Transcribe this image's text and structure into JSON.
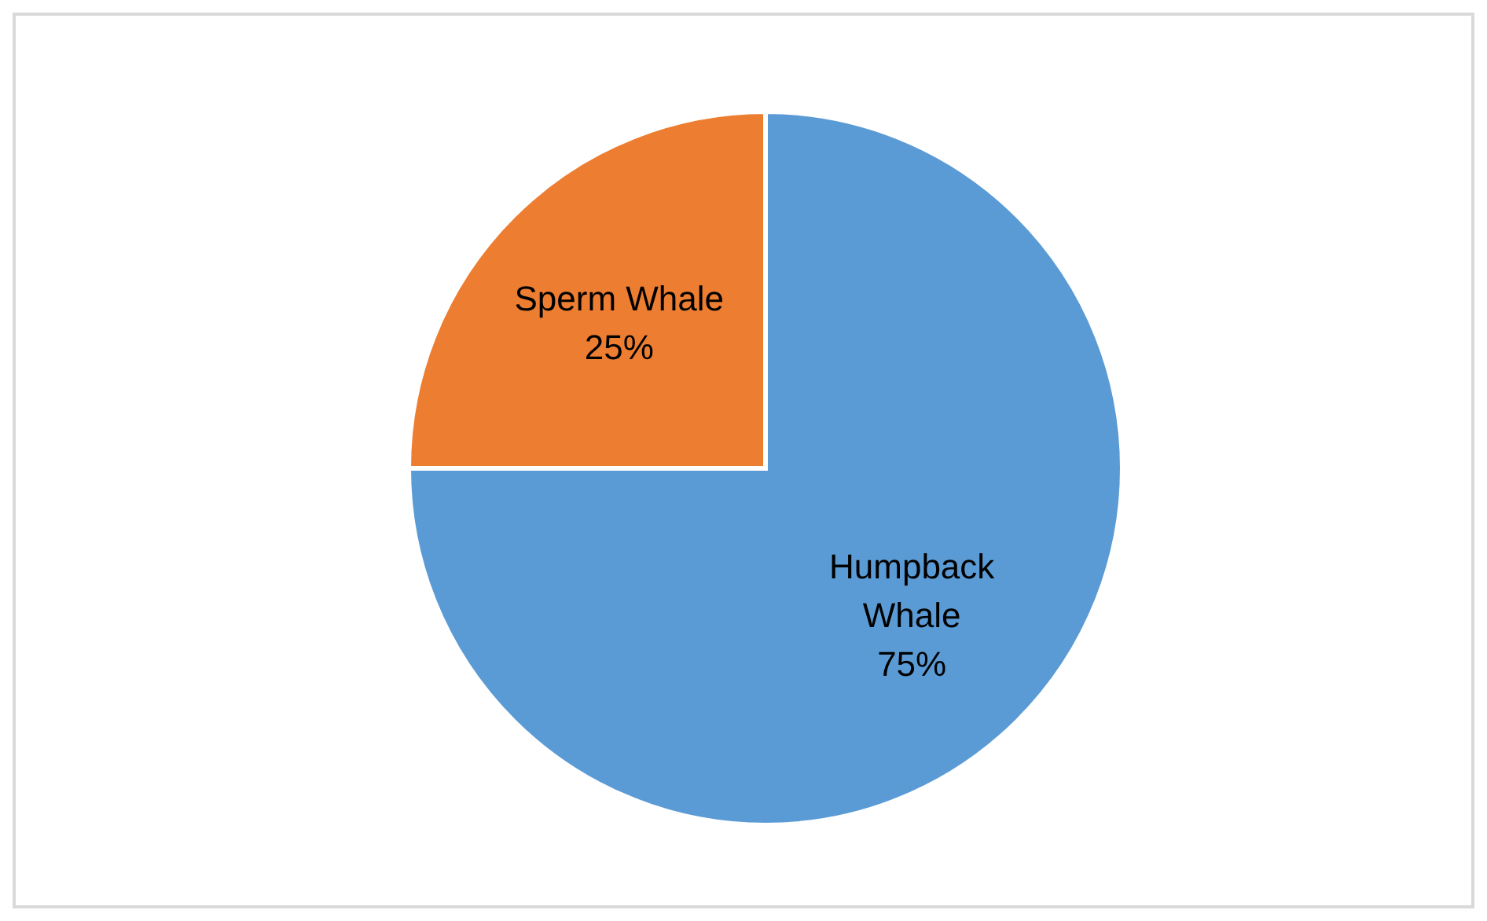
{
  "chart_data": {
    "type": "pie",
    "categories": [
      "Humpback Whale",
      "Sperm Whale"
    ],
    "values": [
      75,
      25
    ],
    "colors": [
      "#5b9bd5",
      "#ed7d31"
    ],
    "value_labels": [
      "75%",
      "25%"
    ],
    "legend": false
  }
}
